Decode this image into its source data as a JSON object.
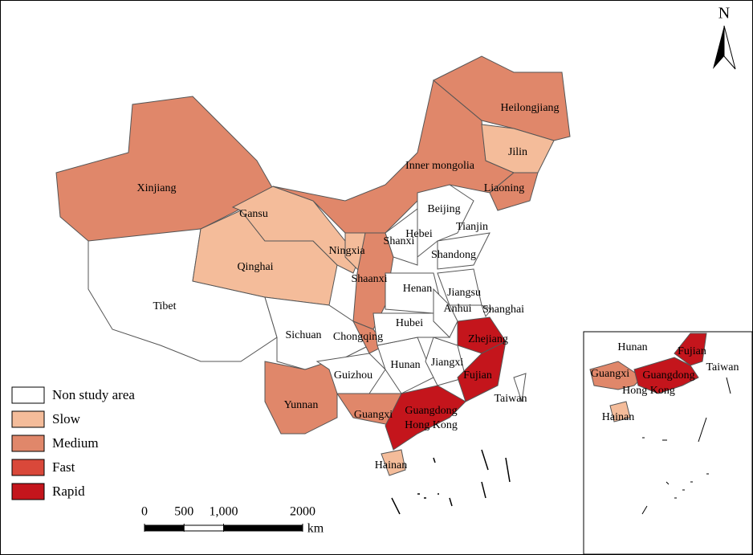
{
  "north": "N",
  "legend": [
    {
      "name": "Non study area",
      "color": "#ffffff"
    },
    {
      "name": "Slow",
      "color": "#f4bc9a"
    },
    {
      "name": "Medium",
      "color": "#e0876a"
    },
    {
      "name": "Fast",
      "color": "#d9483a"
    },
    {
      "name": "Rapid",
      "color": "#c4151c"
    }
  ],
  "regions": [
    {
      "label": "Xinjiang",
      "color": "#e0876a"
    },
    {
      "label": "Tibet",
      "color": "#ffffff"
    },
    {
      "label": "Qinghai",
      "color": "#f4bc9a"
    },
    {
      "label": "Gansu",
      "color": "#f4bc9a"
    },
    {
      "label": "Inner mongolia",
      "color": "#e0876a"
    },
    {
      "label": "Heilongjiang",
      "color": "#e0876a"
    },
    {
      "label": "Jilin",
      "color": "#f4bc9a"
    },
    {
      "label": "Liaoning",
      "color": "#e0876a"
    },
    {
      "label": "Ningxia",
      "color": "#f4bc9a"
    },
    {
      "label": "Shaanxi",
      "color": "#e0876a"
    },
    {
      "label": "Sichuan",
      "color": "#ffffff"
    },
    {
      "label": "Chongqing",
      "color": "#e0876a"
    },
    {
      "label": "Yunnan",
      "color": "#e0876a"
    },
    {
      "label": "Guizhou",
      "color": "#ffffff"
    },
    {
      "label": "Guangxi",
      "color": "#e0876a"
    },
    {
      "label": "Hainan",
      "color": "#f4bc9a"
    },
    {
      "label": "Hunan",
      "color": "#ffffff"
    },
    {
      "label": "Hubei",
      "color": "#ffffff"
    },
    {
      "label": "Henan",
      "color": "#ffffff"
    },
    {
      "label": "Shanxi",
      "color": "#ffffff"
    },
    {
      "label": "Hebei",
      "color": "#ffffff"
    },
    {
      "label": "Beijing",
      "color": "#ffffff"
    },
    {
      "label": "Tianjin",
      "color": "#ffffff"
    },
    {
      "label": "Shandong",
      "color": "#ffffff"
    },
    {
      "label": "Jiangsu",
      "color": "#ffffff"
    },
    {
      "label": "Anhui",
      "color": "#ffffff"
    },
    {
      "label": "Shanghai",
      "color": "#ffffff"
    },
    {
      "label": "Zhejiang",
      "color": "#c4151c"
    },
    {
      "label": "Jiangxi",
      "color": "#ffffff"
    },
    {
      "label": "Fujian",
      "color": "#c4151c"
    },
    {
      "label": "Guangdong",
      "color": "#c4151c"
    },
    {
      "label": "Hong Kong",
      "color": "#c4151c"
    },
    {
      "label": "Taiwan",
      "color": "#ffffff"
    }
  ],
  "inset": {
    "labels": [
      "Hunan",
      "Fujian",
      "Guangxi",
      "Guangdong",
      "Taiwan",
      "Hong Kong",
      "Hainan"
    ]
  },
  "scale_bar": {
    "ticks": [
      0,
      500,
      {
        "value": 1000,
        "label": "1,000"
      },
      2000
    ],
    "unit": "km"
  }
}
